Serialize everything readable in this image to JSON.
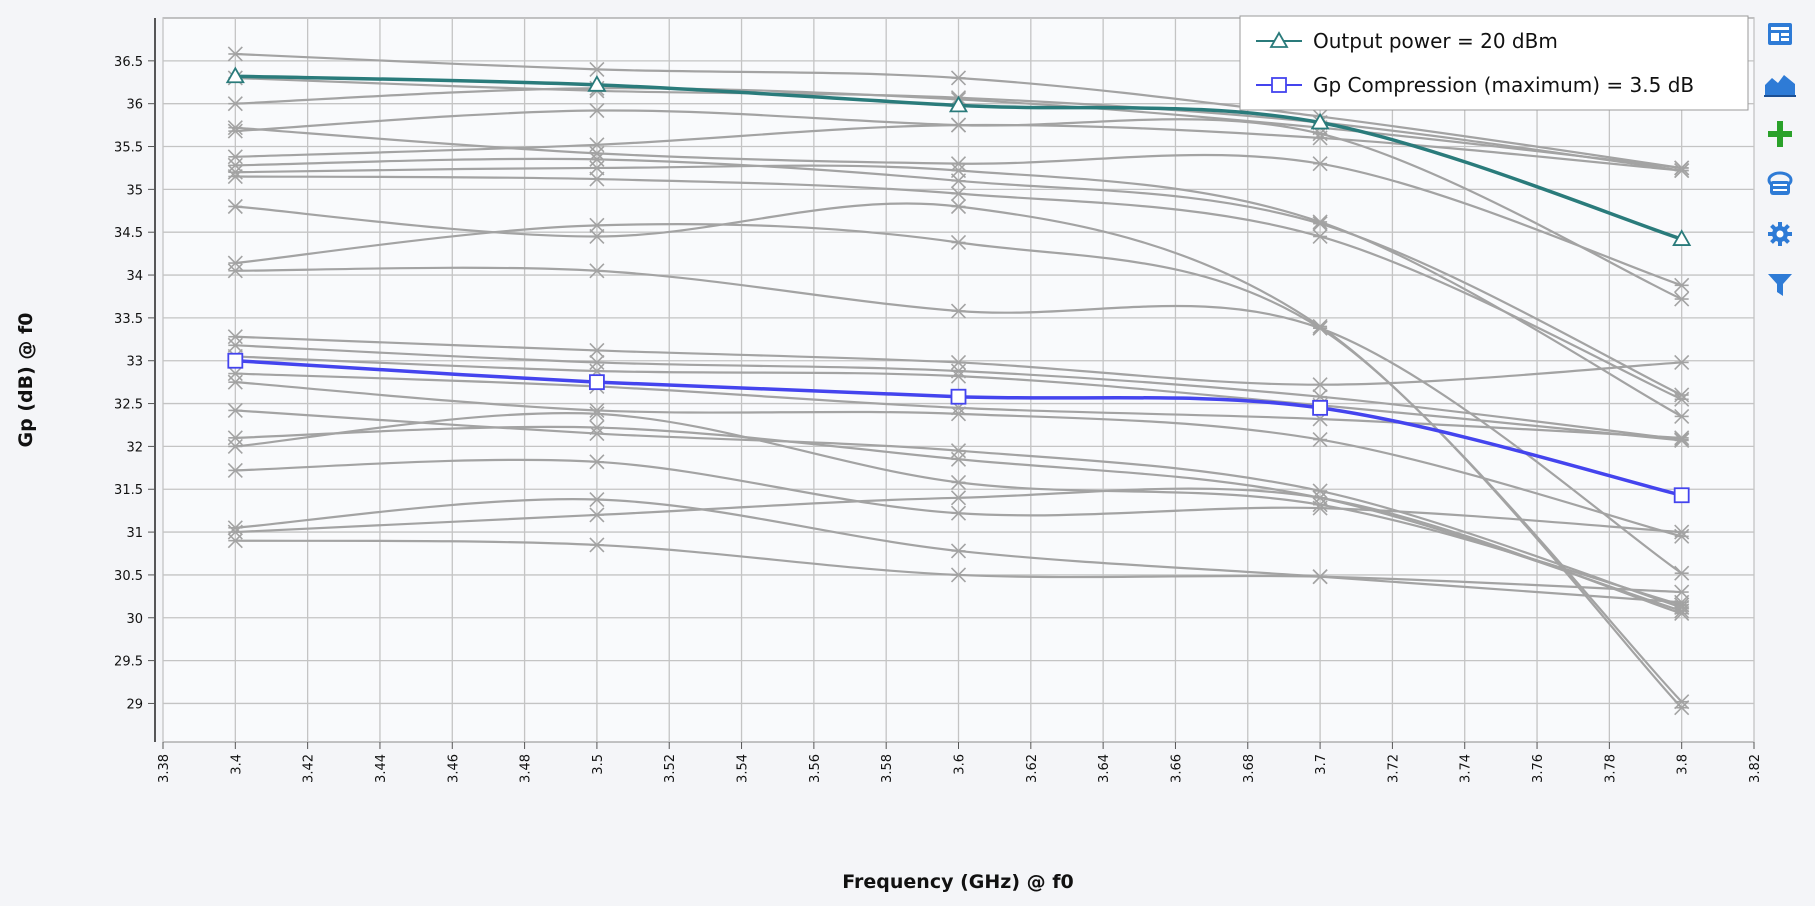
{
  "chart_data": {
    "type": "line",
    "xlabel": "Frequency (GHz) @ f0",
    "ylabel": "Gp (dB) @ f0",
    "xlim": [
      3.38,
      3.82
    ],
    "ylim": [
      28.55,
      37.0
    ],
    "x_ticks": [
      "3.38",
      "3.4",
      "3.42",
      "3.44",
      "3.46",
      "3.48",
      "3.5",
      "3.52",
      "3.54",
      "3.56",
      "3.58",
      "3.6",
      "3.62",
      "3.64",
      "3.66",
      "3.68",
      "3.7",
      "3.72",
      "3.74",
      "3.76",
      "3.78",
      "3.8",
      "3.82"
    ],
    "y_ticks": [
      "36.5",
      "36",
      "35.5",
      "35",
      "34.5",
      "34",
      "33.5",
      "33",
      "32.5",
      "32",
      "31.5",
      "31",
      "30.5",
      "30",
      "29.5",
      "29"
    ],
    "grid": true,
    "legend_position": "top-right",
    "x": [
      3.4,
      3.5,
      3.6,
      3.7,
      3.8
    ],
    "highlight_series": [
      {
        "name": "Output power = 20 dBm",
        "marker": "triangle",
        "color": "#2a7b7b",
        "values": [
          36.32,
          36.22,
          35.98,
          35.78,
          34.42
        ]
      },
      {
        "name": "Gp Compression (maximum) = 3.5 dB",
        "marker": "square",
        "color": "#4444ee",
        "values": [
          33.0,
          32.75,
          32.58,
          32.45,
          31.43
        ]
      }
    ],
    "background_series_color": "#a3a3a3",
    "background_series": [
      [
        36.58,
        36.4,
        36.3,
        35.85,
        35.25
      ],
      [
        36.3,
        36.15,
        36.07,
        35.78,
        35.22
      ],
      [
        36.0,
        36.18,
        36.05,
        35.72,
        35.25
      ],
      [
        35.72,
        35.42,
        35.3,
        35.3,
        33.88
      ],
      [
        35.68,
        35.92,
        35.75,
        35.65,
        33.72
      ],
      [
        35.38,
        35.52,
        35.75,
        35.6,
        35.22
      ],
      [
        35.28,
        35.35,
        35.1,
        34.6,
        32.6
      ],
      [
        35.2,
        35.25,
        35.22,
        34.62,
        32.35
      ],
      [
        35.15,
        35.12,
        34.95,
        34.45,
        32.55
      ],
      [
        34.8,
        34.45,
        34.8,
        33.4,
        29.02
      ],
      [
        34.14,
        34.58,
        34.38,
        33.38,
        28.95
      ],
      [
        34.05,
        34.05,
        33.58,
        33.38,
        30.52
      ],
      [
        33.28,
        33.12,
        32.98,
        32.72,
        32.98
      ],
      [
        33.18,
        32.98,
        32.88,
        32.58,
        32.08
      ],
      [
        33.05,
        32.88,
        32.82,
        32.48,
        32.07
      ],
      [
        32.85,
        32.7,
        32.45,
        32.32,
        32.1
      ],
      [
        32.75,
        32.42,
        32.38,
        32.08,
        30.95
      ],
      [
        32.42,
        32.15,
        31.95,
        31.48,
        30.12
      ],
      [
        32.1,
        32.22,
        31.85,
        31.4,
        30.08
      ],
      [
        32.0,
        32.38,
        31.58,
        31.32,
        30.15
      ],
      [
        31.72,
        31.82,
        31.22,
        31.28,
        31.0
      ],
      [
        31.05,
        31.38,
        30.78,
        30.48,
        30.18
      ],
      [
        30.9,
        30.85,
        30.5,
        30.48,
        30.3
      ],
      [
        31.0,
        31.2,
        31.4,
        31.4,
        30.05
      ]
    ]
  },
  "toolbar": {
    "buttons": [
      {
        "icon": "display-panel-icon",
        "color": "#2e7bd6"
      },
      {
        "icon": "area-chart-icon",
        "color": "#2e7bd6"
      },
      {
        "icon": "add-marker-icon",
        "color": "#2aa12a"
      },
      {
        "icon": "trace-stack-icon",
        "color": "#2e7bd6"
      },
      {
        "icon": "gear-icon",
        "color": "#2e7bd6"
      },
      {
        "icon": "filter-icon",
        "color": "#2e7bd6"
      }
    ]
  }
}
